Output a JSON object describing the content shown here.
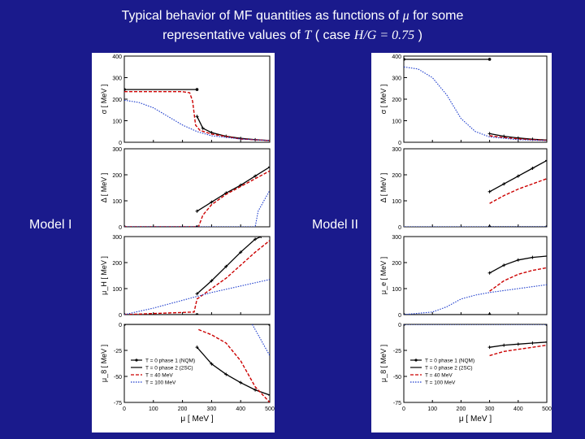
{
  "slide": {
    "title_line1_a": "Typical behavior of MF quantities as functions of",
    "title_mu": "μ",
    "title_line1_b": "for some",
    "title_line2_a": "representative values of",
    "title_T": "T",
    "title_line2_b": "( case",
    "title_ratio": "H/G = 0.75",
    "title_line2_c": ")",
    "model_left": "Model I",
    "model_right": "Model II"
  },
  "legend": {
    "entries": [
      "T = 0  phase 1 (NQM)",
      "T = 0  phase 2 (2SC)",
      "T = 40 MeV",
      "T = 100 MeV"
    ],
    "colors": [
      "#000000",
      "#000000",
      "#cc0000",
      "#1a3acc"
    ]
  },
  "chart_data": [
    {
      "model": "Model I",
      "type": "line",
      "xlabel": "μ  [ MeV ]",
      "xlim": [
        0,
        500
      ],
      "xticks": [
        0,
        100,
        200,
        300,
        400,
        500
      ],
      "panels": [
        {
          "ylabel": "σ  [ MeV ]",
          "ylim": [
            0,
            400
          ],
          "yticks": [
            0,
            100,
            200,
            300,
            400
          ],
          "series": [
            {
              "name": "T = 0 phase 1 (NQM)",
              "x": [
                0,
                250
              ],
              "y": [
                245,
                245
              ]
            },
            {
              "name": "T = 0 phase 2 (2SC)",
              "x": [
                250,
                270,
                300,
                350,
                400,
                450,
                500
              ],
              "y": [
                120,
                65,
                45,
                28,
                18,
                12,
                8
              ]
            },
            {
              "name": "T = 40 MeV",
              "x": [
                0,
                200,
                225,
                235,
                245,
                260,
                300,
                400,
                500
              ],
              "y": [
                235,
                235,
                230,
                190,
                80,
                55,
                38,
                15,
                8
              ]
            },
            {
              "name": "T = 100 MeV",
              "x": [
                0,
                50,
                100,
                150,
                200,
                250,
                300,
                400,
                500
              ],
              "y": [
                195,
                185,
                160,
                120,
                80,
                50,
                30,
                15,
                8
              ]
            }
          ]
        },
        {
          "ylabel": "Δ  [ MeV ]",
          "ylim": [
            0,
            300
          ],
          "yticks": [
            0,
            100,
            200,
            300
          ],
          "series": [
            {
              "name": "T = 0 phase 1 (NQM)",
              "x": [
                0,
                250
              ],
              "y": [
                0,
                0
              ]
            },
            {
              "name": "T = 0 phase 2 (2SC)",
              "x": [
                250,
                300,
                350,
                400,
                450,
                500
              ],
              "y": [
                60,
                95,
                130,
                160,
                195,
                230
              ]
            },
            {
              "name": "T = 40 MeV",
              "x": [
                0,
                255,
                270,
                300,
                350,
                400,
                450,
                500
              ],
              "y": [
                0,
                0,
                45,
                85,
                125,
                155,
                185,
                215
              ]
            },
            {
              "name": "T = 100 MeV",
              "x": [
                0,
                450,
                460,
                480,
                500
              ],
              "y": [
                0,
                0,
                60,
                100,
                140
              ]
            }
          ]
        },
        {
          "ylabel": "μ_H  [ MeV ]",
          "ylim": [
            0,
            300
          ],
          "yticks": [
            0,
            100,
            200,
            300
          ],
          "series": [
            {
              "name": "T = 0 phase 1 (NQM)",
              "x": [
                0,
                250
              ],
              "y": [
                0,
                0
              ]
            },
            {
              "name": "T = 0 phase 2 (2SC)",
              "x": [
                250,
                300,
                350,
                400,
                450,
                470
              ],
              "y": [
                80,
                130,
                185,
                240,
                290,
                300
              ]
            },
            {
              "name": "T = 40 MeV",
              "x": [
                0,
                240,
                250,
                300,
                350,
                400,
                450,
                500
              ],
              "y": [
                0,
                10,
                60,
                100,
                140,
                190,
                240,
                285
              ]
            },
            {
              "name": "T = 100 MeV",
              "x": [
                0,
                100,
                200,
                300,
                400,
                500
              ],
              "y": [
                0,
                25,
                55,
                85,
                110,
                135
              ]
            }
          ]
        },
        {
          "ylabel": "μ_8  [ MeV ]",
          "ylim": [
            -75,
            0
          ],
          "yticks": [
            0,
            -25,
            -50,
            -75
          ],
          "series": [
            {
              "name": "T = 0 phase 1 (NQM)",
              "x": [
                0,
                500
              ],
              "y": [
                0,
                0
              ]
            },
            {
              "name": "T = 0 phase 2 (2SC)",
              "x": [
                250,
                300,
                350,
                400,
                450,
                500
              ],
              "y": [
                -22,
                -38,
                -48,
                -56,
                -63,
                -68
              ]
            },
            {
              "name": "T = 40 MeV",
              "x": [
                255,
                300,
                350,
                400,
                450,
                500
              ],
              "y": [
                -5,
                -10,
                -18,
                -35,
                -60,
                -75
              ]
            },
            {
              "name": "T = 100 MeV",
              "x": [
                440,
                460,
                480,
                500
              ],
              "y": [
                0,
                -10,
                -20,
                -30
              ]
            }
          ]
        }
      ]
    },
    {
      "model": "Model II",
      "type": "line",
      "xlabel": "μ  [ MeV ]",
      "xlim": [
        0,
        500
      ],
      "xticks": [
        0,
        100,
        200,
        300,
        400,
        500
      ],
      "panels": [
        {
          "ylabel": "σ  [ MeV ]",
          "ylim": [
            0,
            400
          ],
          "yticks": [
            0,
            100,
            200,
            300,
            400
          ],
          "series": [
            {
              "name": "T = 0 phase 1 (NQM)",
              "x": [
                0,
                300
              ],
              "y": [
                385,
                385
              ]
            },
            {
              "name": "T = 0 phase 2 (2SC)",
              "x": [
                300,
                350,
                400,
                450,
                500
              ],
              "y": [
                40,
                28,
                20,
                14,
                10
              ]
            },
            {
              "name": "T = 40 MeV",
              "x": [
                300,
                350,
                400,
                450,
                500
              ],
              "y": [
                30,
                22,
                16,
                12,
                9
              ]
            },
            {
              "name": "T = 100 MeV",
              "x": [
                0,
                50,
                100,
                150,
                200,
                250,
                300,
                400,
                500
              ],
              "y": [
                350,
                340,
                300,
                220,
                110,
                50,
                25,
                12,
                8
              ]
            }
          ]
        },
        {
          "ylabel": "Δ  [ MeV ]",
          "ylim": [
            0,
            300
          ],
          "yticks": [
            0,
            100,
            200,
            300
          ],
          "series": [
            {
              "name": "T = 0 phase 1 (NQM)",
              "x": [
                300,
                500
              ],
              "y": [
                0,
                0
              ]
            },
            {
              "name": "T = 0 phase 2 (2SC)",
              "x": [
                300,
                350,
                400,
                450,
                500
              ],
              "y": [
                135,
                165,
                195,
                225,
                255
              ]
            },
            {
              "name": "T = 40 MeV",
              "x": [
                300,
                350,
                400,
                450,
                500
              ],
              "y": [
                90,
                120,
                145,
                165,
                185
              ]
            },
            {
              "name": "T = 100 MeV",
              "x": [
                0,
                500
              ],
              "y": [
                0,
                0
              ]
            }
          ]
        },
        {
          "ylabel": "μ_e  [ MeV ]",
          "ylim": [
            0,
            300
          ],
          "yticks": [
            0,
            100,
            200,
            300
          ],
          "series": [
            {
              "name": "T = 0 phase 1 (NQM)",
              "x": [
                0,
                300
              ],
              "y": [
                0,
                0
              ]
            },
            {
              "name": "T = 0 phase 2 (2SC)",
              "x": [
                300,
                350,
                400,
                450,
                500
              ],
              "y": [
                160,
                190,
                210,
                220,
                225
              ]
            },
            {
              "name": "T = 40 MeV",
              "x": [
                300,
                350,
                400,
                450,
                500
              ],
              "y": [
                90,
                130,
                155,
                170,
                180
              ]
            },
            {
              "name": "T = 100 MeV",
              "x": [
                0,
                100,
                150,
                200,
                250,
                300,
                400,
                500
              ],
              "y": [
                0,
                10,
                30,
                60,
                75,
                85,
                100,
                115
              ]
            }
          ]
        },
        {
          "ylabel": "μ_8  [ MeV ]",
          "ylim": [
            -75,
            0
          ],
          "yticks": [
            0,
            -25,
            -50,
            -75
          ],
          "series": [
            {
              "name": "T = 0 phase 1 (NQM)",
              "x": [
                0,
                500
              ],
              "y": [
                0,
                0
              ]
            },
            {
              "name": "T = 0 phase 2 (2SC)",
              "x": [
                300,
                350,
                400,
                450,
                500
              ],
              "y": [
                -22,
                -20,
                -19,
                -18,
                -17
              ]
            },
            {
              "name": "T = 40 MeV",
              "x": [
                300,
                350,
                400,
                450,
                500
              ],
              "y": [
                -30,
                -26,
                -24,
                -22,
                -20
              ]
            },
            {
              "name": "T = 100 MeV",
              "x": [
                0,
                500
              ],
              "y": [
                0,
                0
              ]
            }
          ]
        }
      ]
    }
  ]
}
